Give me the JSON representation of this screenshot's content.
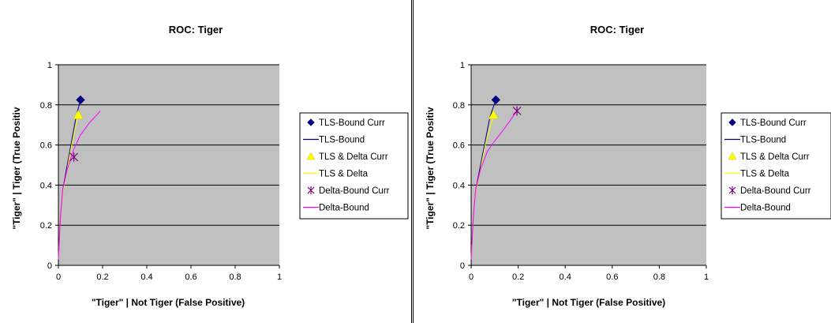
{
  "chart_data": [
    {
      "type": "scatter",
      "title": "ROC: Tiger",
      "xlabel": "\"Tiger\" | Not Tiger (False Positive)",
      "ylabel": "\"Tiger\" | Tiger (True Positiv",
      "xlim": [
        0,
        1
      ],
      "ylim": [
        0,
        1
      ],
      "x_ticks": [
        "0",
        "0.2",
        "0.4",
        "0.6",
        "0.8",
        "1"
      ],
      "y_ticks": [
        "0",
        "0.2",
        "0.4",
        "0.6",
        "0.8",
        "1"
      ],
      "grid": "horizontal",
      "plot_background": "#c0c0c0",
      "legend_position": "right",
      "series": [
        {
          "name": "TLS-Bound Curr",
          "kind": "marker",
          "marker": "diamond",
          "color": "#000080",
          "x": [
            0.1
          ],
          "y": [
            0.825
          ]
        },
        {
          "name": "TLS-Bound",
          "kind": "line",
          "color": "#000080",
          "x": [
            0,
            0.005,
            0.01,
            0.02,
            0.04,
            0.06,
            0.08,
            0.1
          ],
          "y": [
            0.03,
            0.15,
            0.25,
            0.38,
            0.5,
            0.62,
            0.74,
            0.825
          ]
        },
        {
          "name": "TLS & Delta Curr",
          "kind": "marker",
          "marker": "triangle",
          "color": "#ffff00",
          "x": [
            0.09
          ],
          "y": [
            0.75
          ]
        },
        {
          "name": "TLS & Delta",
          "kind": "line",
          "color": "#ffff00",
          "x": [
            0,
            0.005,
            0.01,
            0.02,
            0.04,
            0.06,
            0.09
          ],
          "y": [
            0.03,
            0.15,
            0.25,
            0.37,
            0.48,
            0.6,
            0.75
          ]
        },
        {
          "name": "Delta-Bound Curr",
          "kind": "marker",
          "marker": "asterisk",
          "color": "#800080",
          "x": [
            0.07
          ],
          "y": [
            0.54
          ]
        },
        {
          "name": "Delta-Bound",
          "kind": "line",
          "color": "#ff00ff",
          "x": [
            0,
            0.005,
            0.01,
            0.02,
            0.04,
            0.07,
            0.1,
            0.14,
            0.19
          ],
          "y": [
            0.03,
            0.15,
            0.25,
            0.38,
            0.48,
            0.58,
            0.65,
            0.71,
            0.77
          ]
        }
      ]
    },
    {
      "type": "scatter",
      "title": "ROC: Tiger",
      "xlabel": "\"Tiger\" | Not Tiger (False Positive)",
      "ylabel": "\"Tiger\" | Tiger (True Positiv",
      "xlim": [
        0,
        1
      ],
      "ylim": [
        0,
        1
      ],
      "x_ticks": [
        "0",
        "0.2",
        "0.4",
        "0.6",
        "0.8",
        "1"
      ],
      "y_ticks": [
        "0",
        "0.2",
        "0.4",
        "0.6",
        "0.8",
        "1"
      ],
      "grid": "horizontal",
      "plot_background": "#c0c0c0",
      "legend_position": "right",
      "series": [
        {
          "name": "TLS-Bound Curr",
          "kind": "marker",
          "marker": "diamond",
          "color": "#000080",
          "x": [
            0.105
          ],
          "y": [
            0.825
          ]
        },
        {
          "name": "TLS-Bound",
          "kind": "line",
          "color": "#000080",
          "x": [
            0,
            0.005,
            0.01,
            0.02,
            0.04,
            0.06,
            0.08,
            0.105
          ],
          "y": [
            0.03,
            0.15,
            0.25,
            0.38,
            0.5,
            0.62,
            0.74,
            0.825
          ]
        },
        {
          "name": "TLS & Delta Curr",
          "kind": "marker",
          "marker": "triangle",
          "color": "#ffff00",
          "x": [
            0.095
          ],
          "y": [
            0.75
          ]
        },
        {
          "name": "TLS & Delta",
          "kind": "line",
          "color": "#ffff00",
          "x": [
            0,
            0.005,
            0.01,
            0.02,
            0.04,
            0.06,
            0.095
          ],
          "y": [
            0.03,
            0.15,
            0.25,
            0.37,
            0.48,
            0.6,
            0.75
          ]
        },
        {
          "name": "Delta-Bound Curr",
          "kind": "marker",
          "marker": "asterisk",
          "color": "#800080",
          "x": [
            0.195
          ],
          "y": [
            0.77
          ]
        },
        {
          "name": "Delta-Bound",
          "kind": "line",
          "color": "#ff00ff",
          "x": [
            0,
            0.005,
            0.01,
            0.02,
            0.04,
            0.07,
            0.1,
            0.14,
            0.195
          ],
          "y": [
            0.03,
            0.15,
            0.25,
            0.38,
            0.48,
            0.57,
            0.62,
            0.68,
            0.77
          ]
        }
      ]
    }
  ]
}
